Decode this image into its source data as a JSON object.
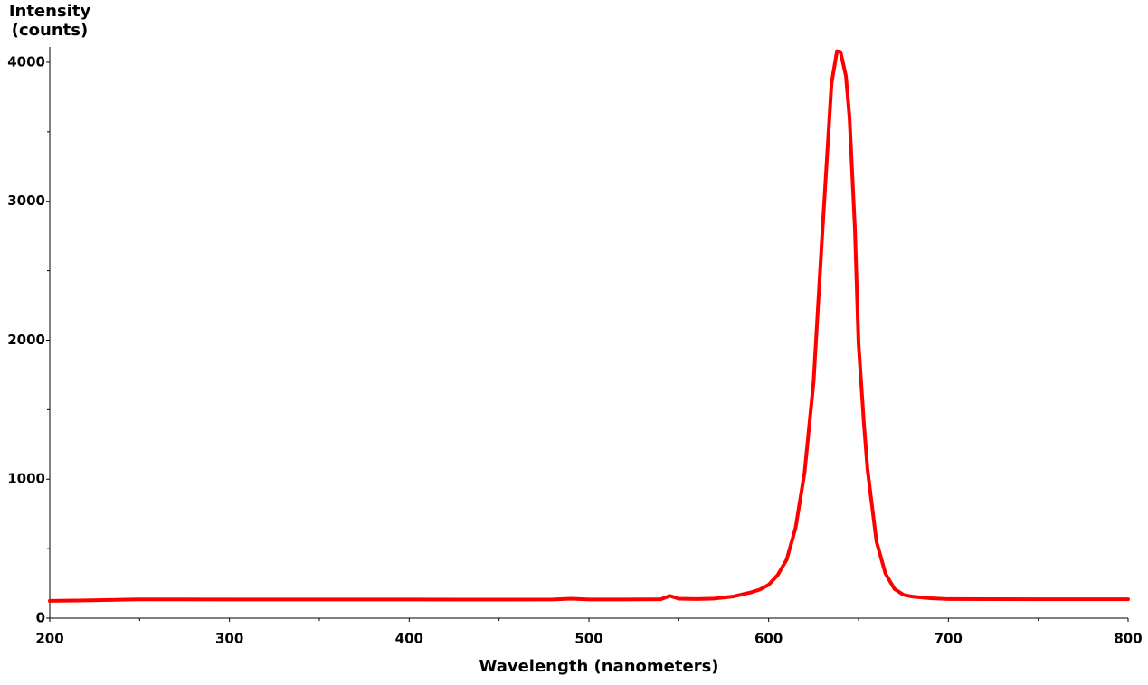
{
  "chart_data": {
    "type": "line",
    "y_label": [
      "Intensity",
      "(counts)"
    ],
    "x_label": "Wavelength (nanometers)",
    "x": [
      200,
      220,
      250,
      300,
      350,
      400,
      450,
      480,
      490,
      500,
      520,
      540,
      545,
      550,
      560,
      570,
      580,
      590,
      595,
      600,
      605,
      610,
      615,
      620,
      625,
      630,
      635,
      638,
      640,
      643,
      645,
      648,
      650,
      653,
      655,
      660,
      665,
      670,
      675,
      680,
      690,
      700,
      750,
      800
    ],
    "series": [
      {
        "color": "#ff0000",
        "values": [
          124,
          128,
          135,
          134,
          134,
          134,
          133,
          134,
          140,
          134,
          134,
          136,
          160,
          140,
          137,
          141,
          155,
          185,
          205,
          240,
          310,
          420,
          650,
          1050,
          1700,
          2800,
          3850,
          4080,
          4075,
          3900,
          3600,
          2800,
          1980,
          1400,
          1070,
          550,
          320,
          210,
          168,
          155,
          143,
          137,
          136,
          136
        ]
      }
    ],
    "xlim": [
      200,
      800
    ],
    "xticks": [
      200,
      300,
      400,
      500,
      600,
      700,
      800
    ],
    "ylim": [
      0,
      4100
    ],
    "yticks": [
      0,
      1000,
      2000,
      3000,
      4000
    ],
    "grid": false
  }
}
